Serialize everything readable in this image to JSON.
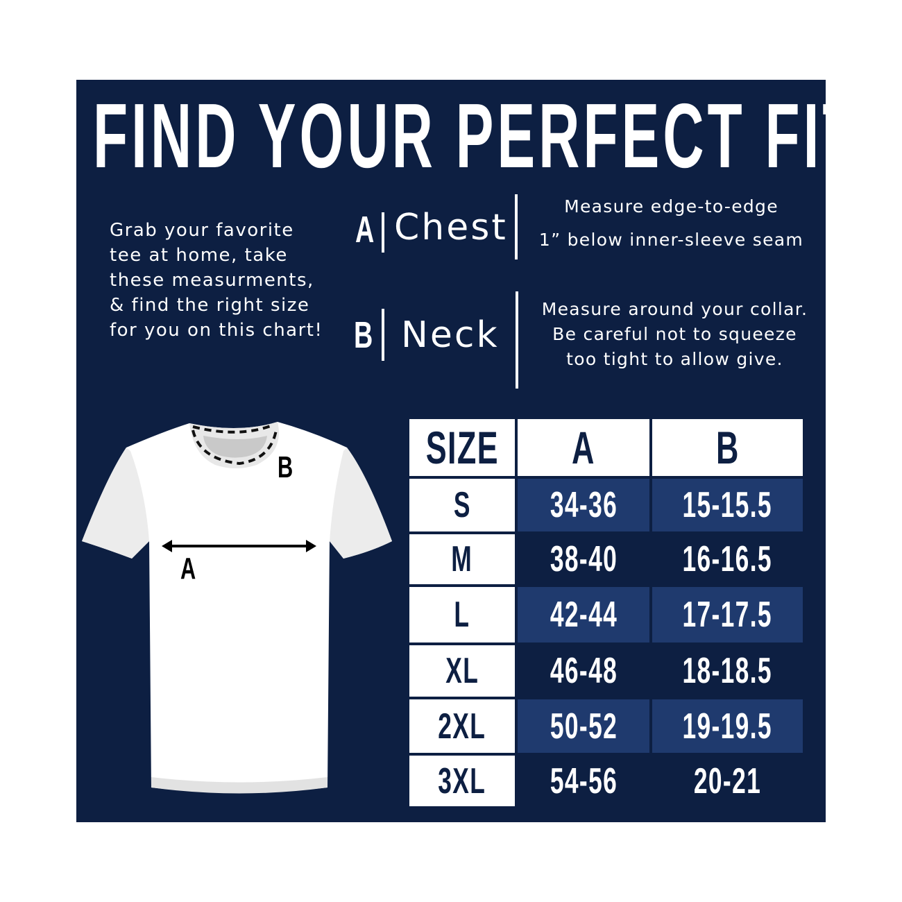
{
  "title": "FIND YOUR PERFECT FIT!",
  "intro": "Grab your favorite tee at home, take these measurments, & find the right size for you on this chart!",
  "measurements": [
    {
      "letter": "A",
      "name": "Chest",
      "lines": [
        "Measure edge-to-edge",
        "1” below inner-sleeve seam"
      ]
    },
    {
      "letter": "B",
      "name": "Neck",
      "lines": [
        "Measure around your collar.",
        "Be careful not to squeeze",
        "too tight to allow give."
      ]
    }
  ],
  "diagram": {
    "label_a": "A",
    "label_b": "B"
  },
  "table": {
    "headers": [
      "SIZE",
      "A",
      "B"
    ],
    "rows": [
      [
        "S",
        "34-36",
        "15-15.5"
      ],
      [
        "M",
        "38-40",
        "16-16.5"
      ],
      [
        "L",
        "42-44",
        "17-17.5"
      ],
      [
        "XL",
        "46-48",
        "18-18.5"
      ],
      [
        "2XL",
        "50-52",
        "19-19.5"
      ],
      [
        "3XL",
        "54-56",
        "20-21"
      ]
    ]
  },
  "colors": {
    "background": "#0d1f42",
    "highlight": "#1f3a6e",
    "text": "#ffffff"
  }
}
